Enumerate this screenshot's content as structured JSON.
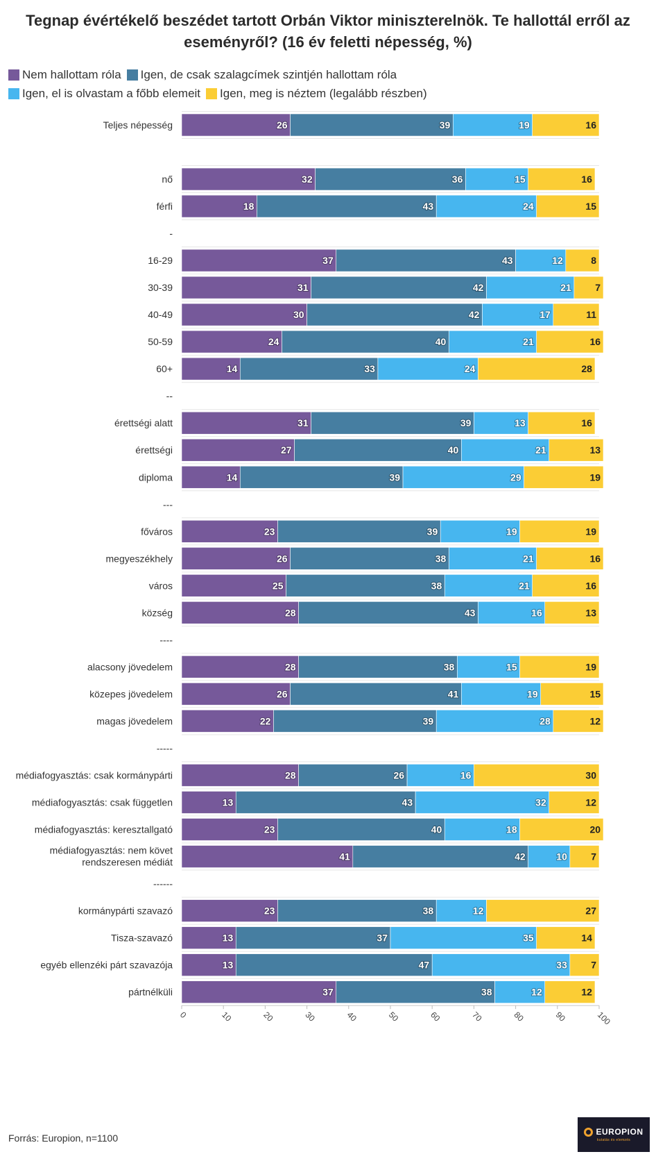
{
  "title": "Tegnap évértékelő beszédet tartott Orbán Viktor miniszterelnök. Te hallottál erről az eseményről? (16 év feletti népesség, %)",
  "source": "Forrás: Europion, n=1100",
  "logo": {
    "text": "EUROPION",
    "subtext": "kutatás és elemzés"
  },
  "chart_data": {
    "type": "bar",
    "orientation": "horizontal",
    "stacked": true,
    "title": "Tegnap évértékelő beszédet tartott Orbán Viktor miniszterelnök. Te hallottál erről az eseményről? (16 év feletti népesség, %)",
    "xlabel": "",
    "ylabel": "",
    "xlim": [
      0,
      100
    ],
    "x_ticks": [
      0,
      10,
      20,
      30,
      40,
      50,
      60,
      70,
      80,
      90,
      100
    ],
    "grid": true,
    "legend_position": "top-left",
    "categories": [
      "Teljes népesség",
      "",
      "nő",
      "férfi",
      "-",
      "16-29",
      "30-39",
      "40-49",
      "50-59",
      "60+",
      "--",
      "érettségi alatt",
      "érettségi",
      "diploma",
      "---",
      "főváros",
      "megyeszékhely",
      "város",
      "község",
      "----",
      "alacsony jövedelem",
      "közepes jövedelem",
      "magas jövedelem",
      "-----",
      "médiafogyasztás: csak kormánypárti",
      "médiafogyasztás: csak független",
      "médiafogyasztás: keresztallgató",
      "médiafogyasztás: nem követ rendszeresen médiát",
      "------",
      "kormánypárti szavazó",
      "Tisza-szavazó",
      "egyéb ellenzéki párt szavazója",
      "pártnélküli"
    ],
    "series": [
      {
        "name": "Nem hallottam róla",
        "color": "#76599a",
        "values": [
          26,
          null,
          32,
          18,
          null,
          37,
          31,
          30,
          24,
          14,
          null,
          31,
          27,
          14,
          null,
          23,
          26,
          25,
          28,
          null,
          28,
          26,
          22,
          null,
          28,
          13,
          23,
          41,
          null,
          23,
          13,
          13,
          37
        ]
      },
      {
        "name": "Igen, de csak szalagcímek szintjén hallottam róla",
        "color": "#467ea1",
        "values": [
          39,
          null,
          36,
          43,
          null,
          43,
          42,
          42,
          40,
          33,
          null,
          39,
          40,
          39,
          null,
          39,
          38,
          38,
          43,
          null,
          38,
          41,
          39,
          null,
          26,
          43,
          40,
          42,
          null,
          38,
          37,
          47,
          38
        ]
      },
      {
        "name": "Igen, el is olvastam a főbb elemeit",
        "color": "#47b6ef",
        "values": [
          19,
          null,
          15,
          24,
          null,
          12,
          21,
          17,
          21,
          24,
          null,
          13,
          21,
          29,
          null,
          19,
          21,
          21,
          16,
          null,
          15,
          19,
          28,
          null,
          16,
          32,
          18,
          10,
          null,
          12,
          35,
          33,
          12
        ]
      },
      {
        "name": "Igen, meg is néztem (legalább részben)",
        "color": "#fbcd35",
        "values": [
          16,
          null,
          16,
          15,
          null,
          8,
          7,
          11,
          16,
          28,
          null,
          16,
          13,
          19,
          null,
          19,
          16,
          16,
          13,
          null,
          19,
          15,
          12,
          null,
          30,
          12,
          20,
          7,
          null,
          27,
          14,
          7,
          12
        ]
      }
    ]
  }
}
